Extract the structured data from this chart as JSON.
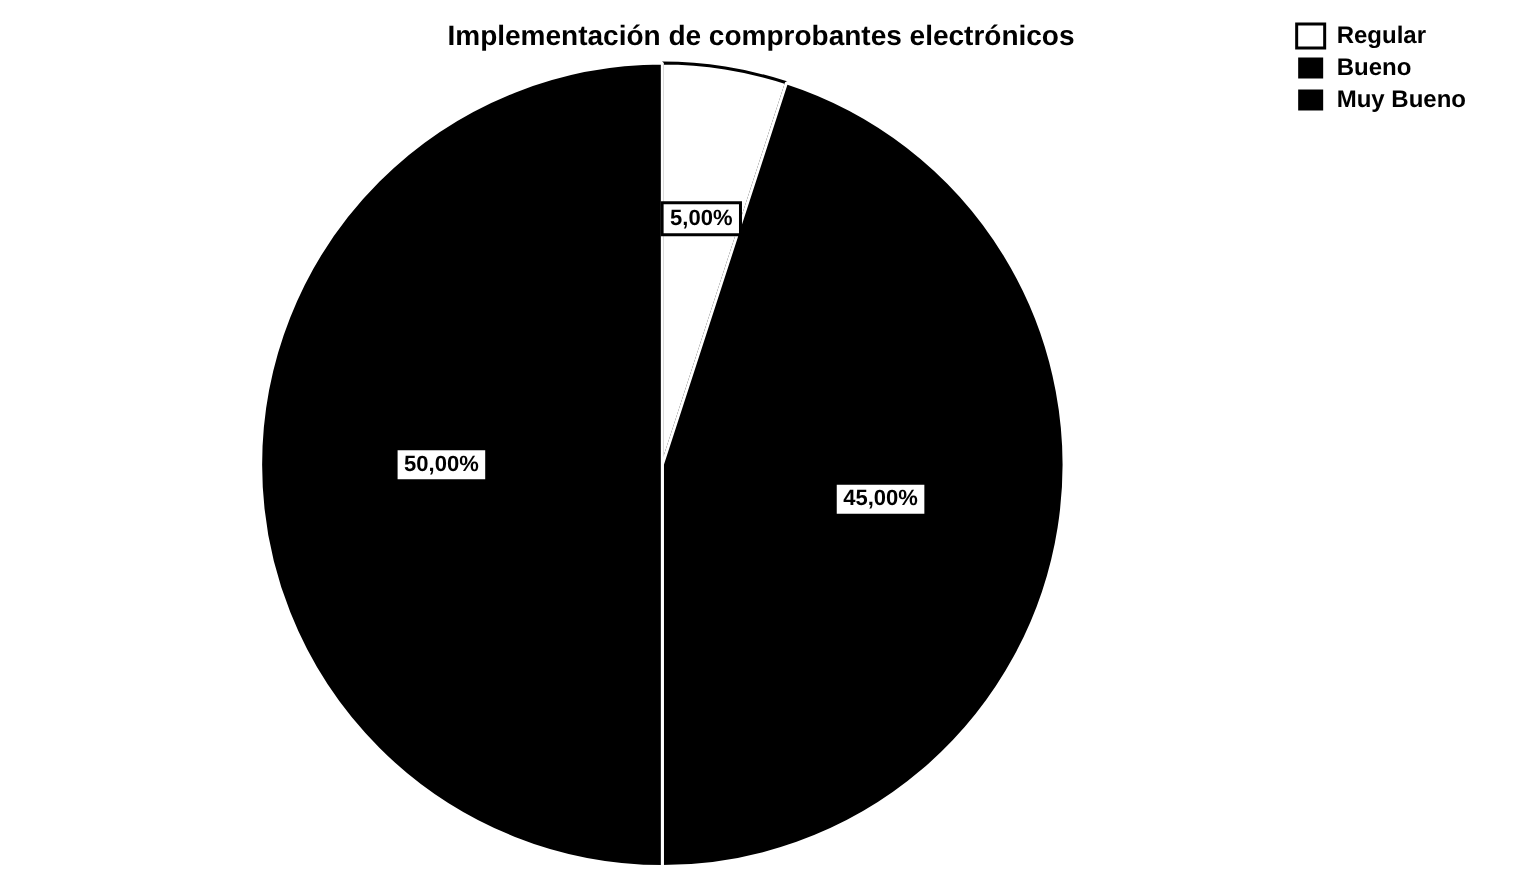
{
  "chart_data": {
    "type": "pie",
    "title": "Implementación de comprobantes electrónicos",
    "categories": [
      "Regular",
      "Bueno",
      "Muy Bueno"
    ],
    "values": [
      5,
      45,
      50
    ],
    "colors": [
      "#ffffff",
      "#000000",
      "#000000"
    ],
    "value_labels": [
      "5,00%",
      "45,00%",
      "50,00%"
    ],
    "legend": "top right"
  }
}
